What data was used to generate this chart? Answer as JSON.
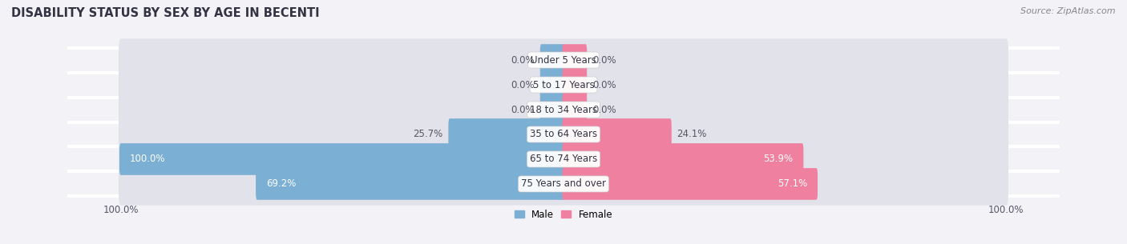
{
  "title": "Disability Status by Sex by Age in Becenti",
  "source": "Source: ZipAtlas.com",
  "categories": [
    "Under 5 Years",
    "5 to 17 Years",
    "18 to 34 Years",
    "35 to 64 Years",
    "65 to 74 Years",
    "75 Years and over"
  ],
  "male_values": [
    0.0,
    0.0,
    0.0,
    25.7,
    100.0,
    69.2
  ],
  "female_values": [
    0.0,
    0.0,
    0.0,
    24.1,
    53.9,
    57.1
  ],
  "male_color": "#7bafd4",
  "female_color": "#f080a0",
  "bg_color": "#f2f2f7",
  "bar_bg_color": "#e2e2ea",
  "row_sep_color": "#ffffff",
  "xlim": 100.0,
  "min_bar_width": 5.0,
  "bar_height": 0.72,
  "title_fontsize": 10.5,
  "label_fontsize": 8.5,
  "tick_fontsize": 8.5,
  "source_fontsize": 8,
  "cat_label_fontsize": 8.5
}
